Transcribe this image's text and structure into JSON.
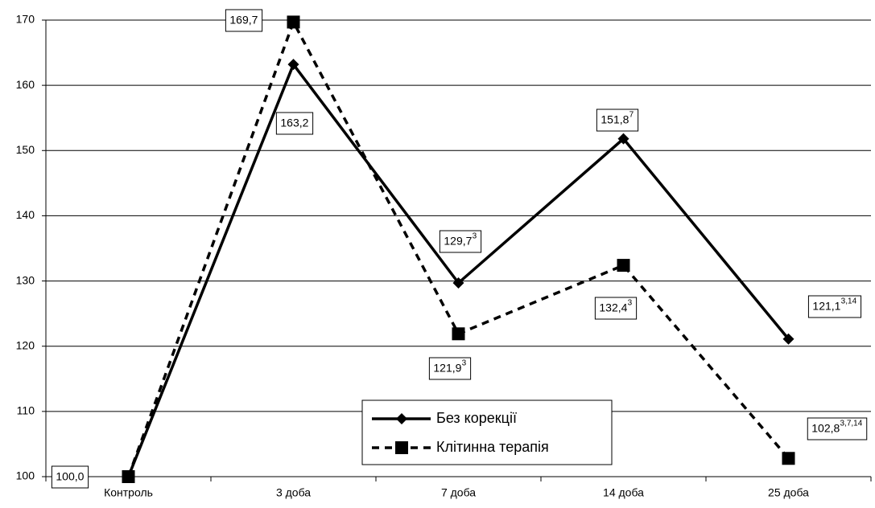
{
  "chart_data": {
    "type": "line",
    "categories": [
      "Контроль",
      "3 доба",
      "7 доба",
      "14 доба",
      "25 доба"
    ],
    "series": [
      {
        "name": "Без корекції",
        "color": "#000000",
        "dash": "solid",
        "marker": "diamond",
        "values": [
          100,
          163.2,
          129.7,
          151.8,
          121.1
        ],
        "value_labels": [
          "100,0",
          "163,2",
          "129,7",
          "151,8",
          "121,1"
        ],
        "value_label_notes": [
          null,
          null,
          "3",
          "7",
          "3,14"
        ]
      },
      {
        "name": "Клітинна терапія",
        "color": "#000000",
        "dash": "dashed",
        "marker": "square",
        "values": [
          100,
          169.7,
          121.9,
          132.4,
          102.8
        ],
        "value_labels": [
          null,
          "169,7",
          "121,9",
          "132,4",
          "102,8"
        ],
        "value_label_notes": [
          null,
          null,
          "3",
          "3",
          "3,7,14"
        ]
      }
    ],
    "ylim": [
      100,
      170
    ],
    "yticks": [
      100,
      110,
      120,
      130,
      140,
      150,
      160,
      170
    ],
    "grid": true
  }
}
